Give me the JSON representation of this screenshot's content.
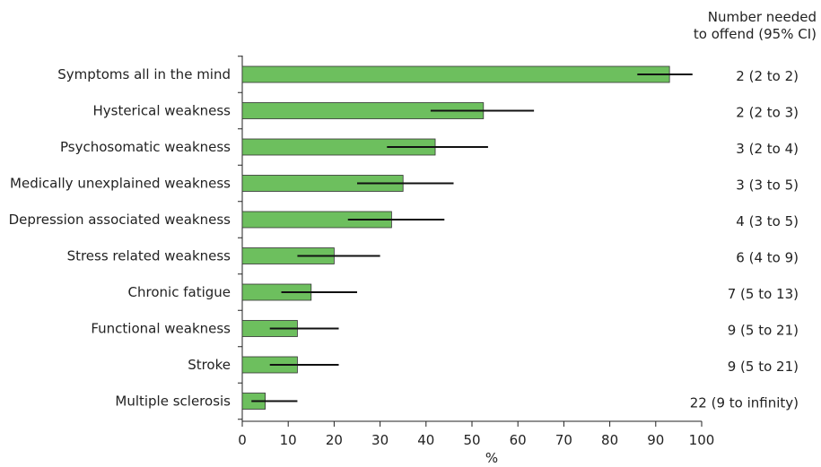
{
  "chart_data": {
    "type": "bar",
    "orientation": "horizontal",
    "categories": [
      "Symptoms all in the mind",
      "Hysterical weakness",
      "Psychosomatic weakness",
      "Medically unexplained weakness",
      "Depression associated weakness",
      "Stress related weakness",
      "Chronic fatigue",
      "Functional weakness",
      "Stroke",
      "Multiple sclerosis"
    ],
    "values": [
      93,
      52.5,
      42,
      35,
      32.5,
      20,
      15,
      12,
      12,
      5
    ],
    "ci_low": [
      86,
      41,
      31.5,
      25,
      23,
      12,
      8.5,
      6,
      6,
      2
    ],
    "ci_high": [
      98,
      63.5,
      53.5,
      46,
      44,
      30,
      25,
      21,
      21,
      12
    ],
    "xlabel": "%",
    "xlim": [
      0,
      100
    ],
    "xticks": [
      "0",
      "10",
      "20",
      "30",
      "40",
      "50",
      "60",
      "70",
      "80",
      "90",
      "100"
    ],
    "right_header": [
      "Number needed",
      "to offend (95% CI)"
    ],
    "right_labels": [
      "2 (2 to 2)",
      "2 (2 to 3)",
      "3 (2 to 4)",
      "3 (3 to 5)",
      "4 (3 to 5)",
      "6 (4 to 9)",
      "7 (5 to 13)",
      "9 (5 to 21)",
      "9 (5 to 21)",
      "22 (9 to infinity)"
    ],
    "bar_color": "#6dbf5e",
    "grid": false
  }
}
